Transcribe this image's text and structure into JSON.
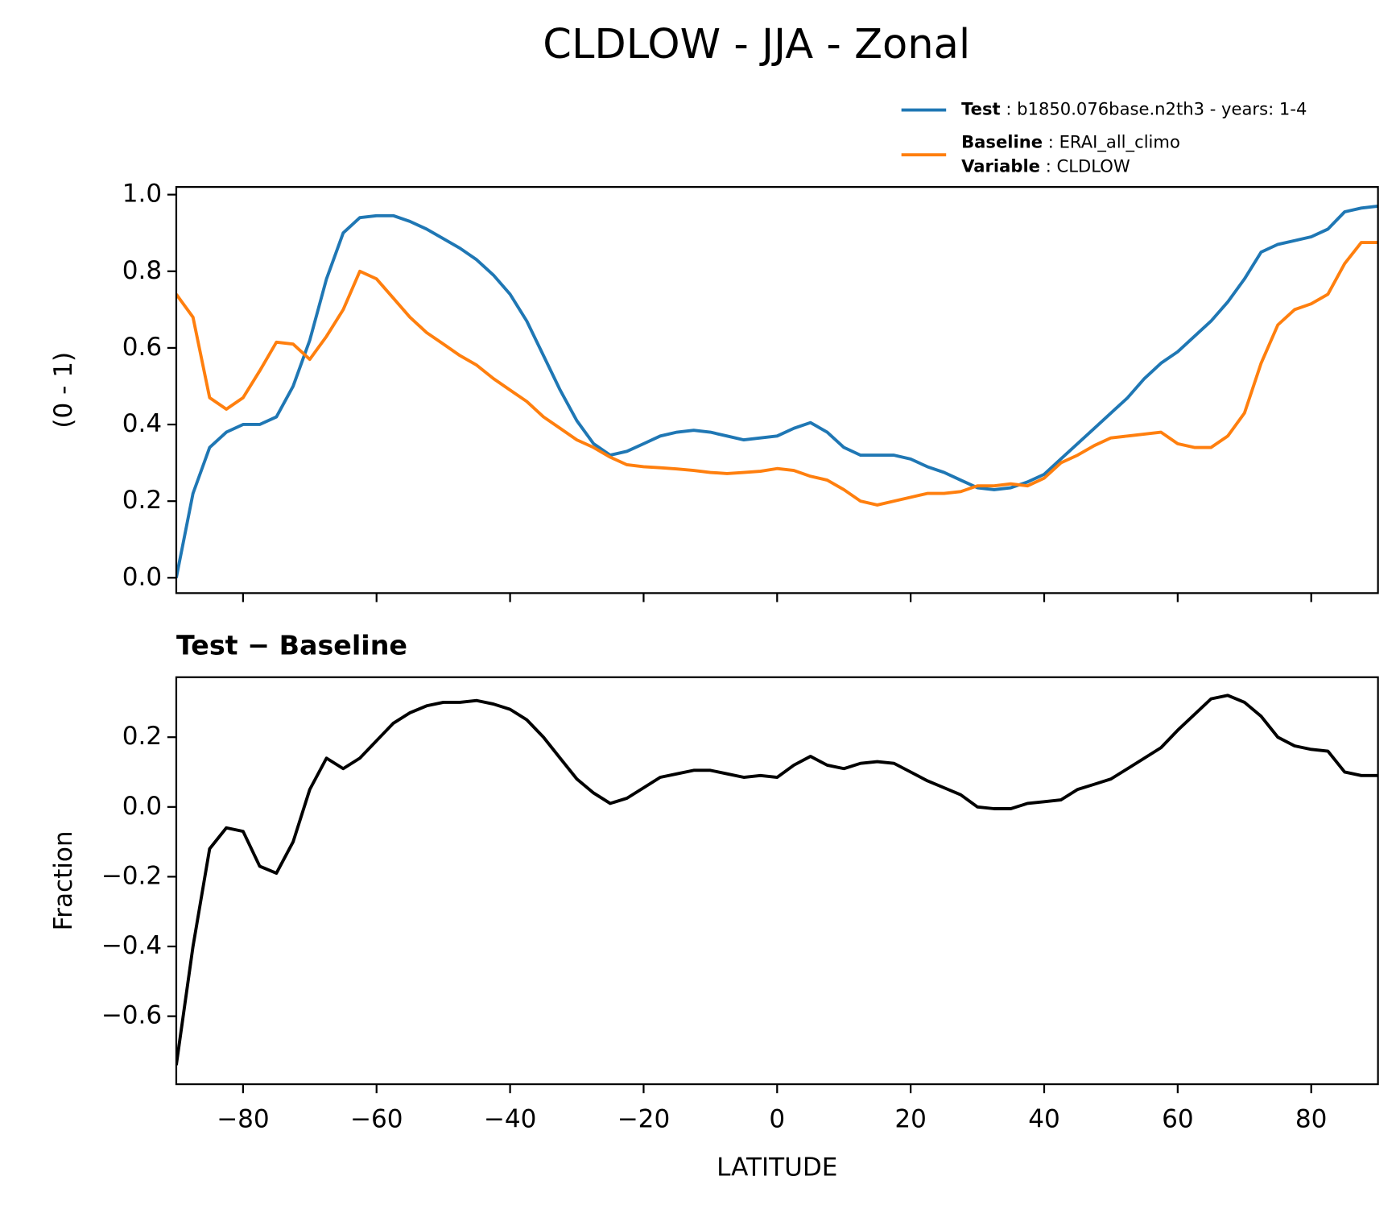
{
  "title": "CLDLOW - JJA - Zonal",
  "chart_data": [
    {
      "type": "line",
      "ylabel": "(0 - 1)",
      "legend": {
        "variable_label": "Variable",
        "variable": "CLDLOW"
      },
      "x": [
        -90,
        -87.5,
        -85,
        -82.5,
        -80,
        -77.5,
        -75,
        -72.5,
        -70,
        -67.5,
        -65,
        -62.5,
        -60,
        -57.5,
        -55,
        -52.5,
        -50,
        -47.5,
        -45,
        -42.5,
        -40,
        -37.5,
        -35,
        -32.5,
        -30,
        -27.5,
        -25,
        -22.5,
        -20,
        -17.5,
        -15,
        -12.5,
        -10,
        -7.5,
        -5,
        -2.5,
        0,
        2.5,
        5,
        7.5,
        10,
        12.5,
        15,
        17.5,
        20,
        22.5,
        25,
        27.5,
        30,
        32.5,
        35,
        37.5,
        40,
        42.5,
        45,
        47.5,
        50,
        52.5,
        55,
        57.5,
        60,
        62.5,
        65,
        67.5,
        70,
        72.5,
        75,
        77.5,
        80,
        82.5,
        85,
        87.5,
        90
      ],
      "series": [
        {
          "name": "Test",
          "description": "b1850.076base.n2th3 - years: 1-4",
          "color": "#1f77b4",
          "values": [
            0.0,
            0.22,
            0.34,
            0.38,
            0.4,
            0.4,
            0.42,
            0.5,
            0.62,
            0.78,
            0.9,
            0.94,
            0.945,
            0.945,
            0.93,
            0.91,
            0.885,
            0.86,
            0.83,
            0.79,
            0.74,
            0.67,
            0.58,
            0.49,
            0.41,
            0.35,
            0.32,
            0.33,
            0.35,
            0.37,
            0.38,
            0.385,
            0.38,
            0.37,
            0.36,
            0.365,
            0.37,
            0.39,
            0.405,
            0.38,
            0.34,
            0.32,
            0.32,
            0.32,
            0.31,
            0.29,
            0.275,
            0.255,
            0.235,
            0.23,
            0.235,
            0.25,
            0.27,
            0.31,
            0.35,
            0.39,
            0.43,
            0.47,
            0.52,
            0.56,
            0.59,
            0.63,
            0.67,
            0.72,
            0.78,
            0.85,
            0.87,
            0.88,
            0.89,
            0.91,
            0.955,
            0.965,
            0.97
          ]
        },
        {
          "name": "Baseline",
          "description": "ERAI_all_climo",
          "color": "#ff7f0e",
          "values": [
            0.74,
            0.68,
            0.47,
            0.44,
            0.47,
            0.54,
            0.615,
            0.61,
            0.57,
            0.63,
            0.7,
            0.8,
            0.78,
            0.73,
            0.68,
            0.64,
            0.61,
            0.58,
            0.555,
            0.52,
            0.49,
            0.46,
            0.42,
            0.39,
            0.36,
            0.34,
            0.315,
            0.295,
            0.29,
            0.287,
            0.284,
            0.28,
            0.275,
            0.272,
            0.275,
            0.278,
            0.285,
            0.28,
            0.265,
            0.255,
            0.23,
            0.2,
            0.19,
            0.2,
            0.21,
            0.22,
            0.22,
            0.225,
            0.24,
            0.24,
            0.245,
            0.24,
            0.26,
            0.3,
            0.32,
            0.345,
            0.365,
            0.37,
            0.375,
            0.38,
            0.35,
            0.34,
            0.34,
            0.37,
            0.43,
            0.56,
            0.66,
            0.7,
            0.715,
            0.74,
            0.82,
            0.875,
            0.875
          ]
        }
      ],
      "xlim": [
        -90,
        90
      ],
      "xticks": [
        -80,
        -60,
        -40,
        -20,
        0,
        20,
        40,
        60,
        80
      ],
      "xtick_labels": false,
      "ylim": [
        -0.04,
        1.02
      ],
      "yticks": [
        {
          "value": 0,
          "label": "0.0"
        },
        0.2,
        0.4,
        0.6,
        0.8,
        {
          "value": 1,
          "label": "1.0"
        }
      ]
    },
    {
      "type": "line",
      "title": "Test − Baseline",
      "xlabel": "LATITUDE",
      "ylabel": "Fraction",
      "x": [
        -90,
        -87.5,
        -85,
        -82.5,
        -80,
        -77.5,
        -75,
        -72.5,
        -70,
        -67.5,
        -65,
        -62.5,
        -60,
        -57.5,
        -55,
        -52.5,
        -50,
        -47.5,
        -45,
        -42.5,
        -40,
        -37.5,
        -35,
        -32.5,
        -30,
        -27.5,
        -25,
        -22.5,
        -20,
        -17.5,
        -15,
        -12.5,
        -10,
        -7.5,
        -5,
        -2.5,
        0,
        2.5,
        5,
        7.5,
        10,
        12.5,
        15,
        17.5,
        20,
        22.5,
        25,
        27.5,
        30,
        32.5,
        35,
        37.5,
        40,
        42.5,
        45,
        47.5,
        50,
        52.5,
        55,
        57.5,
        60,
        62.5,
        65,
        67.5,
        70,
        72.5,
        75,
        77.5,
        80,
        82.5,
        85,
        87.5,
        90
      ],
      "series": [
        {
          "color": "#000000",
          "values": [
            -0.74,
            -0.4,
            -0.12,
            -0.06,
            -0.07,
            -0.17,
            -0.19,
            -0.1,
            0.05,
            0.14,
            0.11,
            0.14,
            0.19,
            0.24,
            0.27,
            0.29,
            0.3,
            0.3,
            0.305,
            0.295,
            0.28,
            0.25,
            0.2,
            0.14,
            0.08,
            0.04,
            0.01,
            0.025,
            0.055,
            0.085,
            0.095,
            0.105,
            0.105,
            0.095,
            0.085,
            0.09,
            0.085,
            0.12,
            0.145,
            0.12,
            0.11,
            0.125,
            0.13,
            0.125,
            0.1,
            0.075,
            0.055,
            0.035,
            0.0,
            -0.005,
            -0.005,
            0.01,
            0.015,
            0.02,
            0.05,
            0.065,
            0.08,
            0.11,
            0.14,
            0.17,
            0.22,
            0.265,
            0.31,
            0.32,
            0.3,
            0.26,
            0.2,
            0.175,
            0.165,
            0.16,
            0.1,
            0.09,
            0.09
          ]
        }
      ],
      "xlim": [
        -90,
        90
      ],
      "xticks": [
        {
          "value": -80,
          "label": "−80"
        },
        {
          "value": -60,
          "label": "−60"
        },
        {
          "value": -40,
          "label": "−40"
        },
        {
          "value": -20,
          "label": "−20"
        },
        0,
        20,
        40,
        60,
        80
      ],
      "ylim": [
        -0.795,
        0.372
      ],
      "yticks": [
        {
          "value": -0.6,
          "label": "−0.6"
        },
        {
          "value": -0.4,
          "label": "−0.4"
        },
        {
          "value": -0.2,
          "label": "−0.2"
        },
        {
          "value": 0,
          "label": "0.0"
        },
        0.2
      ]
    }
  ]
}
